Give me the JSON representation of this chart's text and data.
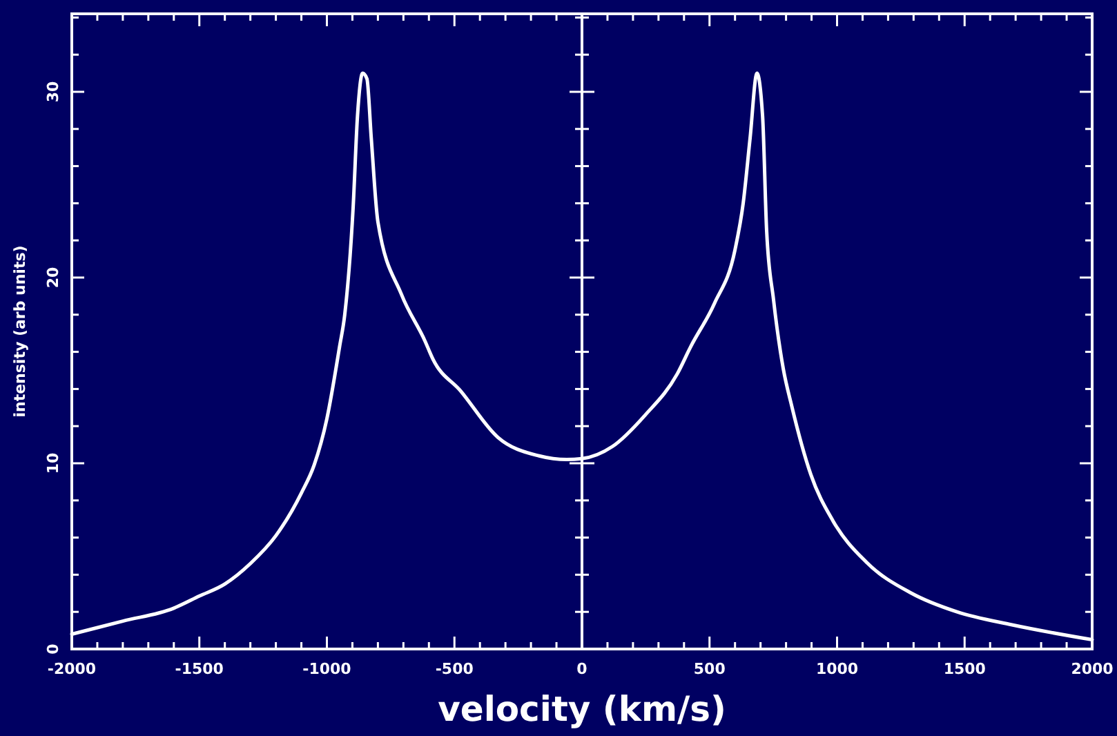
{
  "chart_data": {
    "type": "line",
    "xlabel": "velocity (km/s)",
    "ylabel": "intensity (arb units)",
    "xlim": [
      -2000,
      2000
    ],
    "ylim": [
      0,
      34.2
    ],
    "xticks": [
      -2000,
      {
        "value": -1900,
        "label": null
      },
      {
        "value": -1800,
        "label": null
      },
      {
        "value": -1700,
        "label": null
      },
      {
        "value": -1600,
        "label": null
      },
      -1500,
      {
        "value": -1400,
        "label": null
      },
      {
        "value": -1300,
        "label": null
      },
      {
        "value": -1200,
        "label": null
      },
      {
        "value": -1100,
        "label": null
      },
      -1000,
      {
        "value": -900,
        "label": null
      },
      {
        "value": -800,
        "label": null
      },
      {
        "value": -700,
        "label": null
      },
      {
        "value": -600,
        "label": null
      },
      -500,
      {
        "value": -400,
        "label": null
      },
      {
        "value": -300,
        "label": null
      },
      {
        "value": -200,
        "label": null
      },
      {
        "value": -100,
        "label": null
      },
      0,
      {
        "value": 100,
        "label": null
      },
      {
        "value": 200,
        "label": null
      },
      {
        "value": 300,
        "label": null
      },
      {
        "value": 400,
        "label": null
      },
      500,
      {
        "value": 600,
        "label": null
      },
      {
        "value": 700,
        "label": null
      },
      {
        "value": 800,
        "label": null
      },
      {
        "value": 900,
        "label": null
      },
      1000,
      {
        "value": 1100,
        "label": null
      },
      {
        "value": 1200,
        "label": null
      },
      {
        "value": 1300,
        "label": null
      },
      {
        "value": 1400,
        "label": null
      },
      1500,
      {
        "value": 1600,
        "label": null
      },
      {
        "value": 1700,
        "label": null
      },
      {
        "value": 1800,
        "label": null
      },
      {
        "value": 1900,
        "label": null
      },
      2000
    ],
    "yticks": [
      0,
      {
        "value": 2,
        "label": null
      },
      {
        "value": 4,
        "label": null
      },
      {
        "value": 6,
        "label": null
      },
      {
        "value": 8,
        "label": null
      },
      10,
      {
        "value": 12,
        "label": null
      },
      {
        "value": 14,
        "label": null
      },
      {
        "value": 16,
        "label": null
      },
      {
        "value": 18,
        "label": null
      },
      20,
      {
        "value": 22,
        "label": null
      },
      {
        "value": 24,
        "label": null
      },
      {
        "value": 26,
        "label": null
      },
      {
        "value": 28,
        "label": null
      },
      30,
      {
        "value": 32,
        "label": null
      },
      {
        "value": 34,
        "label": null
      }
    ],
    "ref_lines": [
      {
        "axis": "x",
        "value": 0,
        "color": "#ffffff"
      }
    ],
    "marker": "none",
    "line_style": "solid",
    "grid": false,
    "series": [
      {
        "color": "#ffffff",
        "x": [
          -2000,
          -1800,
          -1600,
          -1500,
          -1400,
          -1300,
          -1200,
          -1100,
          -1050,
          -1000,
          -950,
          -930,
          -897,
          -880,
          -860,
          -843,
          -826,
          -800,
          -708,
          -616,
          -584,
          -476,
          -330,
          -168,
          -60,
          0,
          119,
          248,
          373,
          427,
          519,
          600,
          632,
          659,
          686,
          708,
          724,
          751,
          789,
          822,
          897,
          984,
          1113,
          1292,
          1470,
          1686,
          2000
        ],
        "values": [
          0.8,
          1.5,
          2.2,
          2.85,
          3.5,
          4.6,
          6.1,
          8.4,
          9.9,
          12.4,
          16.3,
          18,
          23.8,
          28.7,
          31.0,
          30.7,
          27.5,
          23.0,
          19.1,
          16.6,
          15.6,
          13.9,
          11.4,
          10.4,
          10.2,
          10.25,
          10.9,
          12.6,
          14.8,
          16.3,
          18.6,
          21.5,
          24,
          27.5,
          31.0,
          28.7,
          22.5,
          18.8,
          15.1,
          13.1,
          9.4,
          6.9,
          4.7,
          3.0,
          2.0,
          1.3,
          0.5
        ]
      }
    ]
  }
}
